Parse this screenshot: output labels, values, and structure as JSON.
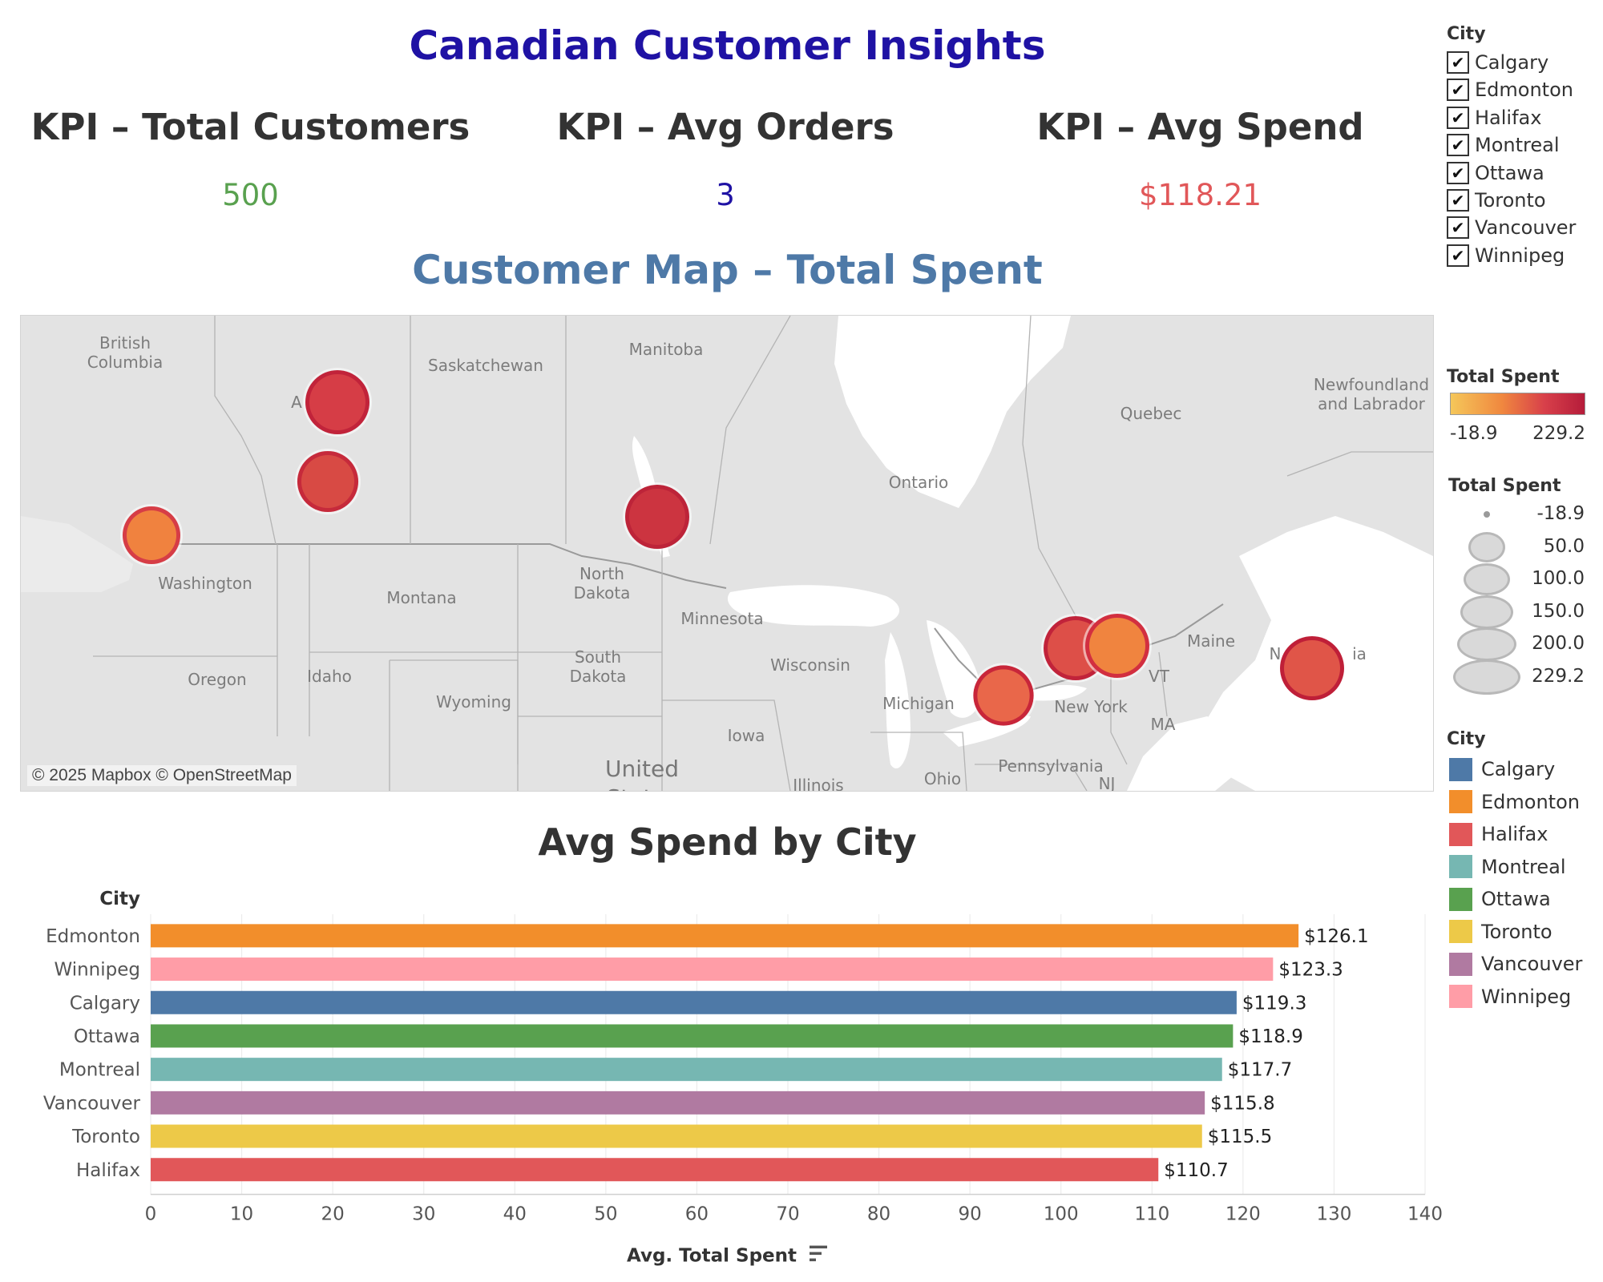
{
  "dashboard": {
    "title": "Canadian Customer Insights"
  },
  "kpis": [
    {
      "title": "KPI – Total Customers",
      "value": "500",
      "color": "#59a14f"
    },
    {
      "title": "KPI – Avg Orders",
      "value": "3",
      "color": "#1f12a4"
    },
    {
      "title": "KPI – Avg Spend",
      "value": "$118.21",
      "color": "#e15759"
    }
  ],
  "map": {
    "title": "Customer Map – Total Spent",
    "credit": "© 2025 Mapbox © OpenStreetMap",
    "labels": {
      "british_columbia": "British\nColumbia",
      "alberta_partial": "A",
      "saskatchewan": "Saskatchewan",
      "manitoba": "Manitoba",
      "ontario": "Ontario",
      "quebec": "Quebec",
      "newfoundland": "Newfoundland\nand Labrador",
      "washington": "Washington",
      "montana": "Montana",
      "north_dakota": "North\nDakota",
      "minnesota": "Minnesota",
      "oregon": "Oregon",
      "idaho": "Idaho",
      "south_dakota": "South\nDakota",
      "wisconsin": "Wisconsin",
      "michigan": "Michigan",
      "wyoming": "Wyoming",
      "iowa": "Iowa",
      "new_york": "New York",
      "maine": "Maine",
      "ma": "MA",
      "pennsylvania": "Pennsylvania",
      "ohio": "Ohio",
      "illinois": "Illinois",
      "nj": "NJ",
      "vt": "VT",
      "nova_scotia_partial": "N",
      "nova_scotia_partial2": "ia",
      "united_states": "United\nStates"
    },
    "markers": [
      {
        "city": "Edmonton",
        "total_spent": 229.2,
        "fill": "#d63d46",
        "ring": "#c1233a"
      },
      {
        "city": "Calgary",
        "total_spent": 205.0,
        "fill": "#d84a44",
        "ring": "#c62a3b"
      },
      {
        "city": "Vancouver",
        "total_spent": 180.0,
        "fill": "#f0823f",
        "ring": "#d63d46"
      },
      {
        "city": "Winnipeg",
        "total_spent": 229.2,
        "fill": "#cc3440",
        "ring": "#bd2439"
      },
      {
        "city": "Toronto",
        "total_spent": 200.0,
        "fill": "#e9674a",
        "ring": "#c8263a"
      },
      {
        "city": "Ottawa",
        "total_spent": 229.0,
        "fill": "#dd4f48",
        "ring": "#c1233a"
      },
      {
        "city": "Montreal",
        "total_spent": 229.2,
        "fill": "#f0843f",
        "ring": "#d22f40"
      },
      {
        "city": "Halifax",
        "total_spent": 229.2,
        "fill": "#e05548",
        "ring": "#bf1f38"
      }
    ]
  },
  "filter": {
    "title": "City",
    "items": [
      {
        "label": "Calgary",
        "checked": true
      },
      {
        "label": "Edmonton",
        "checked": true
      },
      {
        "label": "Halifax",
        "checked": true
      },
      {
        "label": "Montreal",
        "checked": true
      },
      {
        "label": "Ottawa",
        "checked": true
      },
      {
        "label": "Toronto",
        "checked": true
      },
      {
        "label": "Vancouver",
        "checked": true
      },
      {
        "label": "Winnipeg",
        "checked": true
      }
    ],
    "check_glyph": "✔"
  },
  "color_scale_legend": {
    "title": "Total Spent",
    "min_label": "-18.9",
    "max_label": "229.2",
    "colors": [
      "#f5c75a",
      "#f0883f",
      "#d8404a",
      "#b51c3a"
    ]
  },
  "size_legend": {
    "title": "Total Spent",
    "items": [
      {
        "value": "-18.9"
      },
      {
        "value": "50.0"
      },
      {
        "value": "100.0"
      },
      {
        "value": "150.0"
      },
      {
        "value": "200.0"
      },
      {
        "value": "229.2"
      }
    ]
  },
  "color_legend": {
    "title": "City",
    "items": [
      {
        "label": "Calgary",
        "color": "#4e79a7"
      },
      {
        "label": "Edmonton",
        "color": "#f28e2b"
      },
      {
        "label": "Halifax",
        "color": "#e15759"
      },
      {
        "label": "Montreal",
        "color": "#76b7b2"
      },
      {
        "label": "Ottawa",
        "color": "#59a14f"
      },
      {
        "label": "Toronto",
        "color": "#edc948"
      },
      {
        "label": "Vancouver",
        "color": "#b07aa1"
      },
      {
        "label": "Winnipeg",
        "color": "#ff9da7"
      }
    ]
  },
  "chart_data": {
    "type": "bar",
    "orientation": "horizontal",
    "title": "Avg Spend by City",
    "ylabel": "City",
    "xlabel": "Avg. Total Spent",
    "categories": [
      "Edmonton",
      "Winnipeg",
      "Calgary",
      "Ottawa",
      "Montreal",
      "Vancouver",
      "Toronto",
      "Halifax"
    ],
    "values": [
      126.1,
      123.3,
      119.3,
      118.9,
      117.7,
      115.8,
      115.5,
      110.7
    ],
    "value_labels": [
      "$126.1",
      "$123.3",
      "$119.3",
      "$118.9",
      "$117.7",
      "$115.8",
      "$115.5",
      "$110.7"
    ],
    "colors": [
      "#f28e2b",
      "#ff9da7",
      "#4e79a7",
      "#59a14f",
      "#76b7b2",
      "#b07aa1",
      "#edc948",
      "#e15759"
    ],
    "xlim": [
      0,
      140
    ],
    "xticks": [
      0,
      10,
      20,
      30,
      40,
      50,
      60,
      70,
      80,
      90,
      100,
      110,
      120,
      130,
      140
    ],
    "grid": true,
    "sort_icon": "sort-descending-icon"
  }
}
